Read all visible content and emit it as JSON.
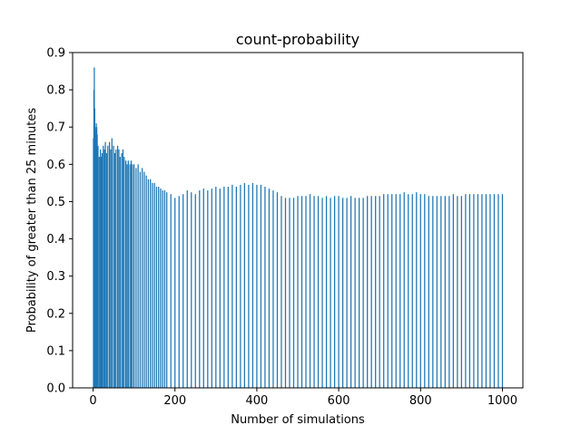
{
  "chart_data": {
    "type": "bar",
    "title": "count-probability",
    "xlabel": "Number of simulations",
    "ylabel": "Probability of greater than 25 minutes",
    "xlim": [
      -50,
      1050
    ],
    "ylim": [
      0,
      0.9
    ],
    "xticks": [
      0,
      200,
      400,
      600,
      800,
      1000
    ],
    "yticks": [
      0.0,
      0.1,
      0.2,
      0.3,
      0.4,
      0.5,
      0.6,
      0.7,
      0.8,
      0.9
    ],
    "xtick_labels": [
      "0",
      "200",
      "400",
      "600",
      "800",
      "1000"
    ],
    "ytick_labels": [
      "0.0",
      "0.1",
      "0.2",
      "0.3",
      "0.4",
      "0.5",
      "0.6",
      "0.7",
      "0.8",
      "0.9"
    ],
    "grid": false,
    "bar_color": "#1f77b4",
    "x": [
      1,
      2,
      3,
      4,
      5,
      6,
      7,
      8,
      9,
      10,
      12,
      15,
      18,
      20,
      22,
      25,
      28,
      30,
      33,
      36,
      40,
      43,
      46,
      50,
      53,
      56,
      60,
      63,
      66,
      70,
      73,
      76,
      80,
      83,
      86,
      90,
      93,
      96,
      100,
      105,
      110,
      115,
      120,
      125,
      130,
      135,
      140,
      145,
      150,
      155,
      160,
      165,
      170,
      175,
      180,
      190,
      200,
      210,
      220,
      230,
      240,
      250,
      260,
      270,
      280,
      290,
      300,
      310,
      320,
      330,
      340,
      350,
      360,
      370,
      380,
      390,
      400,
      410,
      420,
      430,
      440,
      450,
      460,
      470,
      480,
      490,
      500,
      510,
      520,
      530,
      540,
      550,
      560,
      570,
      580,
      590,
      600,
      610,
      620,
      630,
      640,
      650,
      660,
      670,
      680,
      690,
      700,
      710,
      720,
      730,
      740,
      750,
      760,
      770,
      780,
      790,
      800,
      810,
      820,
      830,
      840,
      850,
      860,
      870,
      880,
      890,
      900,
      910,
      920,
      930,
      940,
      950,
      960,
      970,
      980,
      990,
      1000
    ],
    "values": [
      0.67,
      0.8,
      0.86,
      0.75,
      0.7,
      0.67,
      0.69,
      0.71,
      0.7,
      0.68,
      0.65,
      0.62,
      0.64,
      0.62,
      0.63,
      0.65,
      0.64,
      0.66,
      0.63,
      0.65,
      0.66,
      0.64,
      0.67,
      0.65,
      0.63,
      0.64,
      0.65,
      0.64,
      0.62,
      0.63,
      0.64,
      0.62,
      0.61,
      0.6,
      0.61,
      0.6,
      0.61,
      0.6,
      0.6,
      0.59,
      0.6,
      0.58,
      0.59,
      0.58,
      0.57,
      0.56,
      0.56,
      0.55,
      0.55,
      0.54,
      0.54,
      0.535,
      0.53,
      0.53,
      0.525,
      0.52,
      0.51,
      0.515,
      0.52,
      0.53,
      0.525,
      0.52,
      0.53,
      0.535,
      0.53,
      0.535,
      0.54,
      0.535,
      0.54,
      0.54,
      0.545,
      0.54,
      0.545,
      0.55,
      0.545,
      0.55,
      0.545,
      0.545,
      0.54,
      0.535,
      0.53,
      0.525,
      0.515,
      0.51,
      0.51,
      0.51,
      0.515,
      0.515,
      0.515,
      0.52,
      0.515,
      0.515,
      0.51,
      0.515,
      0.51,
      0.515,
      0.515,
      0.51,
      0.51,
      0.515,
      0.51,
      0.51,
      0.51,
      0.515,
      0.515,
      0.515,
      0.515,
      0.52,
      0.52,
      0.52,
      0.52,
      0.52,
      0.525,
      0.52,
      0.52,
      0.525,
      0.52,
      0.52,
      0.515,
      0.515,
      0.515,
      0.515,
      0.515,
      0.515,
      0.52,
      0.515,
      0.515,
      0.52,
      0.52,
      0.52,
      0.52,
      0.52,
      0.52,
      0.52,
      0.52,
      0.52,
      0.52
    ]
  }
}
